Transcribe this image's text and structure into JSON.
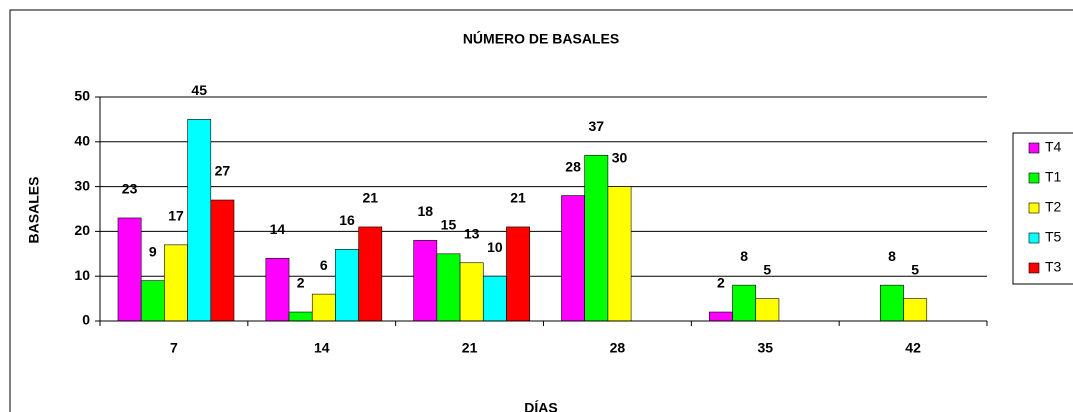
{
  "chart_data": {
    "type": "bar",
    "title": "NÚMERO DE BASALES",
    "x_label": "DÍAS",
    "y_label": "BASALES",
    "categories": [
      "7",
      "14",
      "21",
      "28",
      "35",
      "42"
    ],
    "series": [
      {
        "name": "T4",
        "color": "#ff00ff",
        "values": [
          23,
          14,
          18,
          28,
          2,
          null
        ]
      },
      {
        "name": "T1",
        "color": "#00ff00",
        "values": [
          9,
          2,
          15,
          37,
          8,
          8
        ]
      },
      {
        "name": "T2",
        "color": "#ffff00",
        "values": [
          17,
          6,
          13,
          30,
          5,
          5
        ]
      },
      {
        "name": "T5",
        "color": "#00ffff",
        "values": [
          45,
          16,
          10,
          null,
          null,
          null
        ]
      },
      {
        "name": "T3",
        "color": "#ff0000",
        "values": [
          27,
          21,
          21,
          null,
          null,
          null
        ]
      }
    ],
    "ylim": [
      0,
      50
    ],
    "yticks": [
      0,
      10,
      20,
      30,
      40,
      50
    ],
    "grid": true,
    "legend": "right"
  }
}
